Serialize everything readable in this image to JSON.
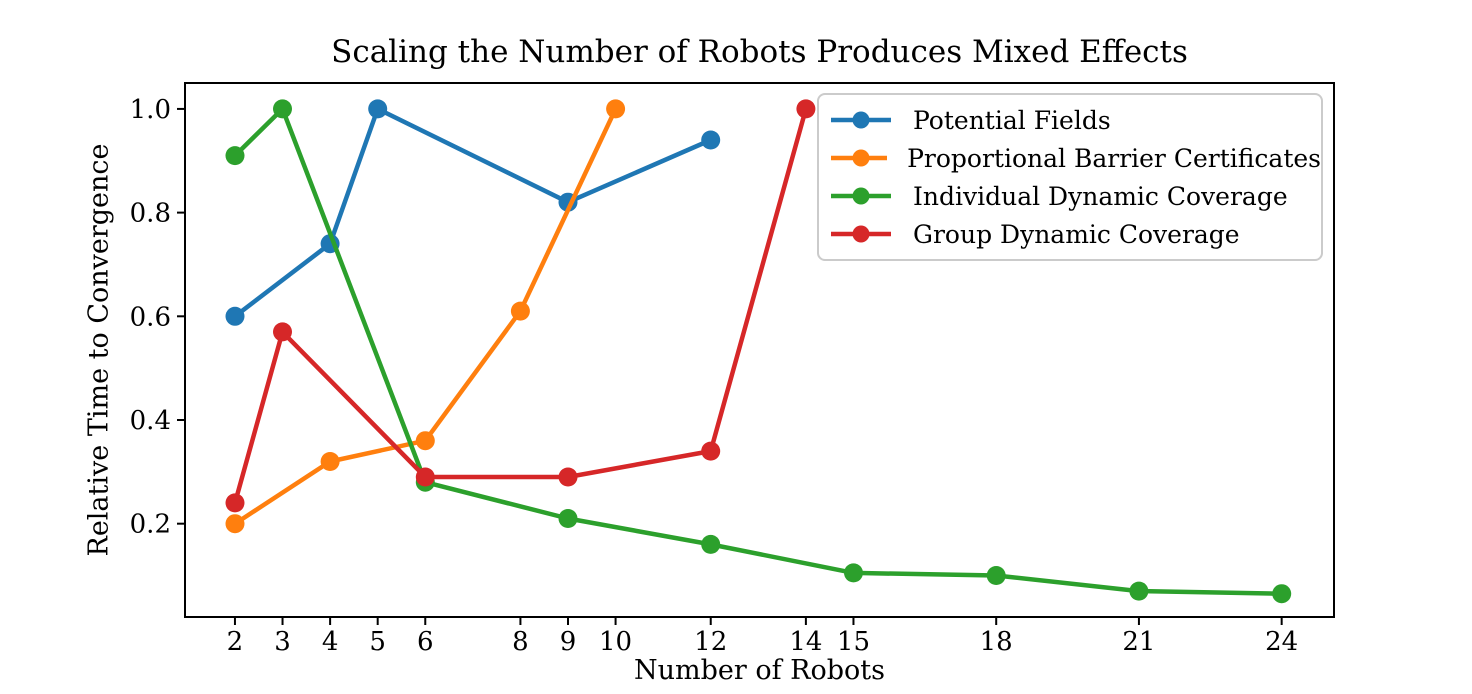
{
  "chart_data": {
    "type": "line",
    "title": "Scaling the Number of Robots Produces Mixed Effects",
    "xlabel": "Number of Robots",
    "ylabel": "Relative Time to Convergence",
    "xlim": [
      0.95,
      25.1
    ],
    "ylim": [
      0.02,
      1.05
    ],
    "x_ticks": [
      2,
      3,
      4,
      5,
      6,
      8,
      9,
      10,
      12,
      14,
      15,
      18,
      21,
      24
    ],
    "y_ticks": [
      0.2,
      0.4,
      0.6,
      0.8,
      1.0
    ],
    "grid": false,
    "legend_position": "upper right",
    "series": [
      {
        "name": "Potential Fields",
        "color": "#1f77b4",
        "x": [
          2,
          4,
          5,
          9,
          12
        ],
        "y": [
          0.6,
          0.74,
          1.0,
          0.82,
          0.94
        ]
      },
      {
        "name": "Proportional Barrier Certificates",
        "color": "#ff7f0e",
        "x": [
          2,
          4,
          6,
          8,
          10
        ],
        "y": [
          0.2,
          0.32,
          0.36,
          0.61,
          1.0
        ]
      },
      {
        "name": "Individual Dynamic Coverage",
        "color": "#2ca02c",
        "x": [
          2,
          3,
          6,
          9,
          12,
          15,
          18,
          21,
          24
        ],
        "y": [
          0.91,
          1.0,
          0.28,
          0.21,
          0.16,
          0.105,
          0.1,
          0.07,
          0.065
        ]
      },
      {
        "name": "Group Dynamic Coverage",
        "color": "#d62728",
        "x": [
          2,
          3,
          6,
          9,
          12,
          14
        ],
        "y": [
          0.24,
          0.57,
          0.29,
          0.29,
          0.34,
          1.0
        ]
      }
    ]
  }
}
